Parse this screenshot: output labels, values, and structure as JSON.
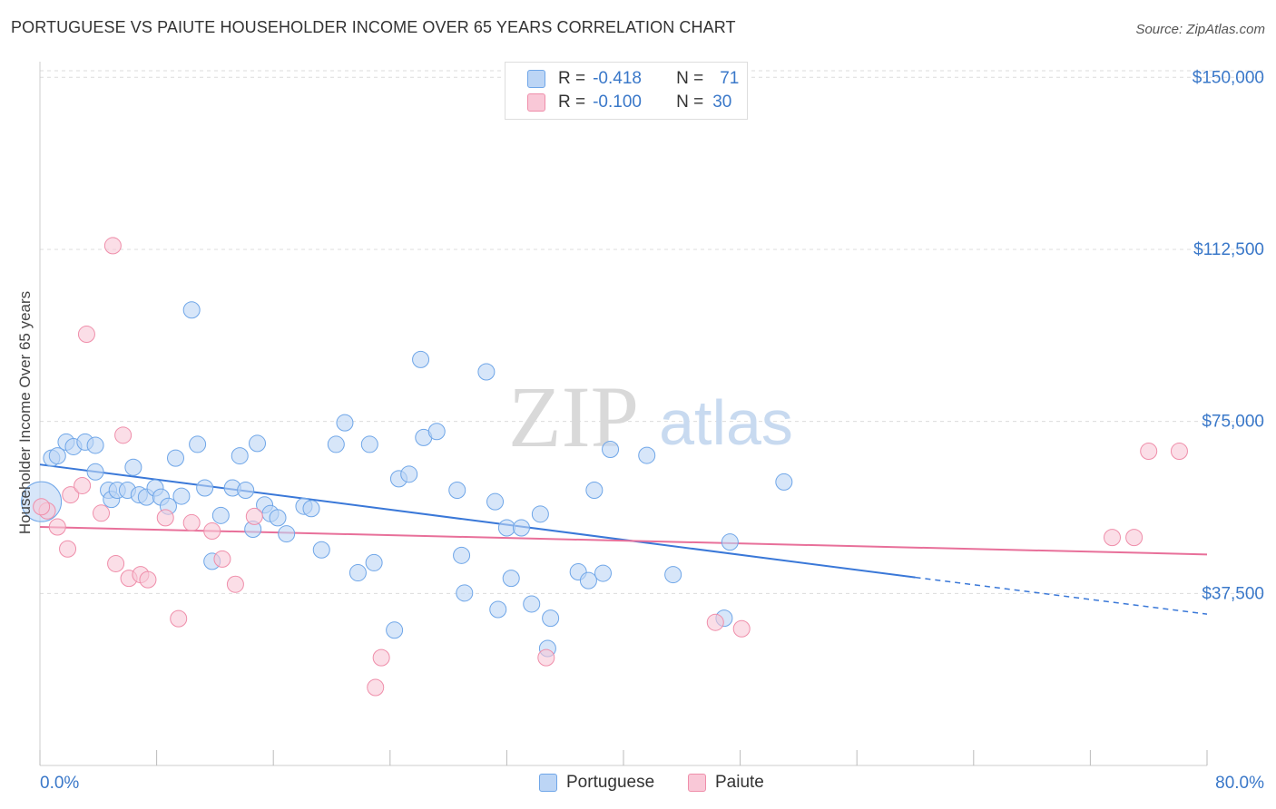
{
  "header": {
    "title": "PORTUGUESE VS PAIUTE HOUSEHOLDER INCOME OVER 65 YEARS CORRELATION CHART",
    "source": "Source: ZipAtlas.com"
  },
  "watermark": {
    "zip": "ZIP",
    "atlas": "atlas"
  },
  "legend": {
    "rows": [
      {
        "r_label": "R =",
        "r_value": "-0.418",
        "n_label": "N =",
        "n_value": "71",
        "color": "#6fa6e8",
        "fill": "#bcd5f5"
      },
      {
        "r_label": "R =",
        "r_value": "-0.100",
        "n_label": "N =",
        "n_value": "30",
        "color": "#ef8eaa",
        "fill": "#f9c8d7"
      }
    ]
  },
  "bottom_legend": {
    "items": [
      {
        "label": "Portuguese",
        "color": "#6fa6e8",
        "fill": "#bcd5f5"
      },
      {
        "label": "Paiute",
        "color": "#ef8eaa",
        "fill": "#f9c8d7"
      }
    ]
  },
  "chart_data": {
    "type": "scatter",
    "title": "PORTUGUESE VS PAIUTE HOUSEHOLDER INCOME OVER 65 YEARS CORRELATION CHART",
    "xlabel": "",
    "ylabel": "Householder Income Over 65 years",
    "xlim": [
      0,
      80
    ],
    "ylim": [
      0,
      155000
    ],
    "x_tick_labels": [
      "0.0%",
      "80.0%"
    ],
    "y_ticks": [
      37500,
      75000,
      112500,
      150000
    ],
    "y_tick_labels": [
      "$37,500",
      "$75,000",
      "$112,500",
      "$150,000"
    ],
    "grid": "horizontal dashed",
    "legend_position": "top-center",
    "series": [
      {
        "name": "Portuguese",
        "color": "#3a78d8",
        "trend": {
          "x": [
            0,
            60,
            80
          ],
          "y": [
            65600,
            41000,
            33000
          ],
          "solid_until_x": 60
        },
        "points": [
          [
            0.1,
            57500
          ],
          [
            0.8,
            67000
          ],
          [
            1.2,
            67500
          ],
          [
            1.8,
            70500
          ],
          [
            2.3,
            69500
          ],
          [
            3.1,
            70500
          ],
          [
            3.8,
            69800
          ],
          [
            3.8,
            64000
          ],
          [
            4.7,
            60000
          ],
          [
            4.9,
            58000
          ],
          [
            5.3,
            60000
          ],
          [
            6.0,
            60000
          ],
          [
            6.4,
            65000
          ],
          [
            6.8,
            59000
          ],
          [
            7.3,
            58500
          ],
          [
            7.9,
            60500
          ],
          [
            8.3,
            58500
          ],
          [
            8.8,
            56500
          ],
          [
            9.3,
            67000
          ],
          [
            9.7,
            58700
          ],
          [
            10.4,
            99300
          ],
          [
            10.8,
            70000
          ],
          [
            11.3,
            60500
          ],
          [
            11.8,
            44500
          ],
          [
            12.4,
            54500
          ],
          [
            13.2,
            60500
          ],
          [
            13.7,
            67500
          ],
          [
            14.1,
            60000
          ],
          [
            14.6,
            51500
          ],
          [
            14.9,
            70200
          ],
          [
            15.4,
            56800
          ],
          [
            15.8,
            54900
          ],
          [
            16.3,
            54000
          ],
          [
            16.9,
            50500
          ],
          [
            18.1,
            56500
          ],
          [
            18.6,
            56000
          ],
          [
            19.3,
            47000
          ],
          [
            20.3,
            70000
          ],
          [
            20.9,
            74700
          ],
          [
            21.8,
            42000
          ],
          [
            22.6,
            70000
          ],
          [
            22.9,
            44200
          ],
          [
            24.3,
            29500
          ],
          [
            24.6,
            62500
          ],
          [
            25.3,
            63500
          ],
          [
            26.1,
            88500
          ],
          [
            26.3,
            71500
          ],
          [
            27.2,
            72800
          ],
          [
            28.6,
            60000
          ],
          [
            28.9,
            45800
          ],
          [
            29.1,
            37600
          ],
          [
            30.6,
            85800
          ],
          [
            31.2,
            57500
          ],
          [
            31.4,
            34000
          ],
          [
            32.0,
            51800
          ],
          [
            32.3,
            40800
          ],
          [
            33.0,
            51800
          ],
          [
            33.7,
            35200
          ],
          [
            34.3,
            54800
          ],
          [
            34.8,
            25500
          ],
          [
            35.0,
            32100
          ],
          [
            36.9,
            42200
          ],
          [
            37.6,
            40300
          ],
          [
            38.0,
            60000
          ],
          [
            38.6,
            41900
          ],
          [
            39.1,
            68900
          ],
          [
            41.6,
            67600
          ],
          [
            43.4,
            41600
          ],
          [
            46.9,
            32100
          ],
          [
            47.3,
            48700
          ],
          [
            51.0,
            61800
          ]
        ]
      },
      {
        "name": "Paiute",
        "color": "#e8709a",
        "trend": {
          "x": [
            0,
            80
          ],
          "y": [
            52000,
            46000
          ]
        },
        "points": [
          [
            0.5,
            55500
          ],
          [
            1.2,
            52000
          ],
          [
            1.9,
            47200
          ],
          [
            2.1,
            59000
          ],
          [
            2.9,
            61000
          ],
          [
            3.2,
            94000
          ],
          [
            4.2,
            55000
          ],
          [
            5.2,
            44000
          ],
          [
            5.7,
            72000
          ],
          [
            6.1,
            40800
          ],
          [
            6.9,
            41600
          ],
          [
            7.4,
            40500
          ],
          [
            8.6,
            54000
          ],
          [
            9.5,
            32000
          ],
          [
            10.4,
            52900
          ],
          [
            11.8,
            51100
          ],
          [
            12.5,
            45000
          ],
          [
            13.4,
            39500
          ],
          [
            14.7,
            54300
          ],
          [
            23.0,
            17000
          ],
          [
            23.4,
            23500
          ],
          [
            34.7,
            23500
          ],
          [
            46.3,
            31200
          ],
          [
            48.1,
            29800
          ],
          [
            73.5,
            49700
          ],
          [
            75.0,
            49700
          ],
          [
            76.0,
            68500
          ],
          [
            78.1,
            68500
          ],
          [
            5.0,
            113300
          ],
          [
            0.1,
            56400
          ]
        ]
      }
    ]
  }
}
